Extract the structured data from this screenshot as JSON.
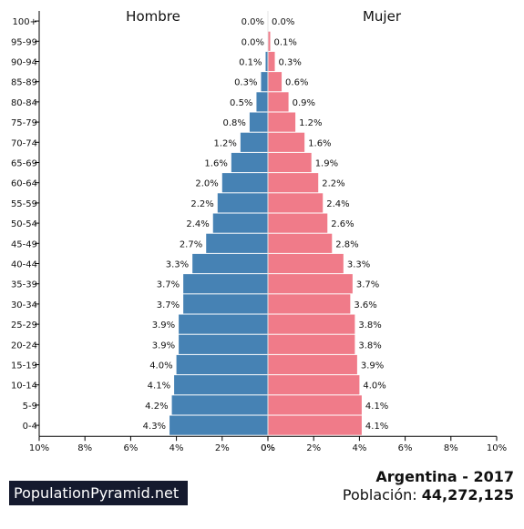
{
  "chart_data": {
    "type": "bar",
    "orientation": "horizontal-pyramid",
    "categories": [
      "100+",
      "95-99",
      "90-94",
      "85-89",
      "80-84",
      "75-79",
      "70-74",
      "65-69",
      "60-64",
      "55-59",
      "50-54",
      "45-49",
      "40-44",
      "35-39",
      "30-34",
      "25-29",
      "20-24",
      "15-19",
      "10-14",
      "5-9",
      "0-4"
    ],
    "series": [
      {
        "name": "Hombre",
        "color": "#4682b4",
        "values": [
          0.0,
          0.0,
          0.1,
          0.3,
          0.5,
          0.8,
          1.2,
          1.6,
          2.0,
          2.2,
          2.4,
          2.7,
          3.3,
          3.7,
          3.7,
          3.9,
          3.9,
          4.0,
          4.1,
          4.2,
          4.3
        ],
        "labels": [
          "0.0%",
          "0.0%",
          "0.1%",
          "0.3%",
          "0.5%",
          "0.8%",
          "1.2%",
          "1.6%",
          "2.0%",
          "2.2%",
          "2.4%",
          "2.7%",
          "3.3%",
          "3.7%",
          "3.7%",
          "3.9%",
          "3.9%",
          "4.0%",
          "4.1%",
          "4.2%",
          "4.3%"
        ]
      },
      {
        "name": "Mujer",
        "color": "#f07b89",
        "values": [
          0.0,
          0.1,
          0.3,
          0.6,
          0.9,
          1.2,
          1.6,
          1.9,
          2.2,
          2.4,
          2.6,
          2.8,
          3.3,
          3.7,
          3.6,
          3.8,
          3.8,
          3.9,
          4.0,
          4.1,
          4.1
        ],
        "labels": [
          "0.0%",
          "0.1%",
          "0.3%",
          "0.6%",
          "0.9%",
          "1.2%",
          "1.6%",
          "1.9%",
          "2.2%",
          "2.4%",
          "2.6%",
          "2.8%",
          "3.3%",
          "3.7%",
          "3.6%",
          "3.8%",
          "3.8%",
          "3.9%",
          "4.0%",
          "4.1%",
          "4.1%"
        ]
      }
    ],
    "xlim": [
      0,
      10
    ],
    "left_ticks": [
      "10%",
      "8%",
      "6%",
      "4%",
      "2%",
      "0%"
    ],
    "right_ticks": [
      "0%",
      "2%",
      "4%",
      "6%",
      "8%",
      "10%"
    ],
    "grid": false
  },
  "footer": {
    "brand": "PopulationPyramid.net",
    "country_year": "Argentina - 2017",
    "population_label": "Población: ",
    "population_value": "44,272,125"
  }
}
